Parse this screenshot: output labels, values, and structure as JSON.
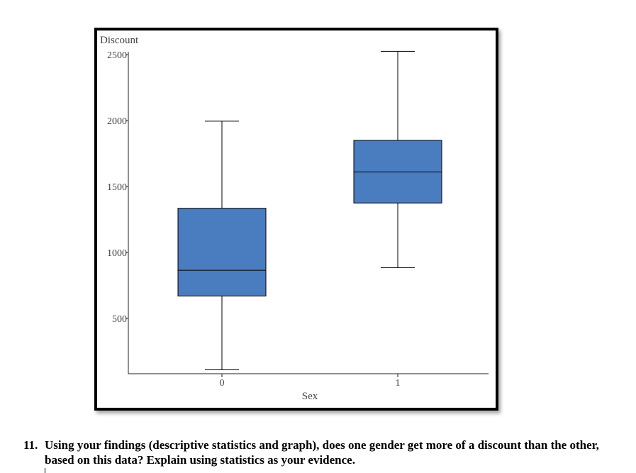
{
  "chart_data": {
    "type": "box",
    "ylabel": "Discount",
    "xlabel": "Sex",
    "yticks": [
      500,
      1000,
      1500,
      2000,
      2500
    ],
    "ylim": [
      50,
      2550
    ],
    "categories": [
      "0",
      "1"
    ],
    "boxes": [
      {
        "category": "0",
        "min": 110,
        "q1": 670,
        "median": 865,
        "q3": 1335,
        "max": 1995
      },
      {
        "category": "1",
        "min": 885,
        "q1": 1375,
        "median": 1610,
        "q3": 1850,
        "max": 2525
      }
    ],
    "box_color": "#4a7cc0",
    "grid": false
  },
  "question": {
    "number": "11.",
    "text": "Using your findings (descriptive statistics and graph), does one gender get more of a discount than the other, based on this data? Explain using statistics as your evidence."
  }
}
